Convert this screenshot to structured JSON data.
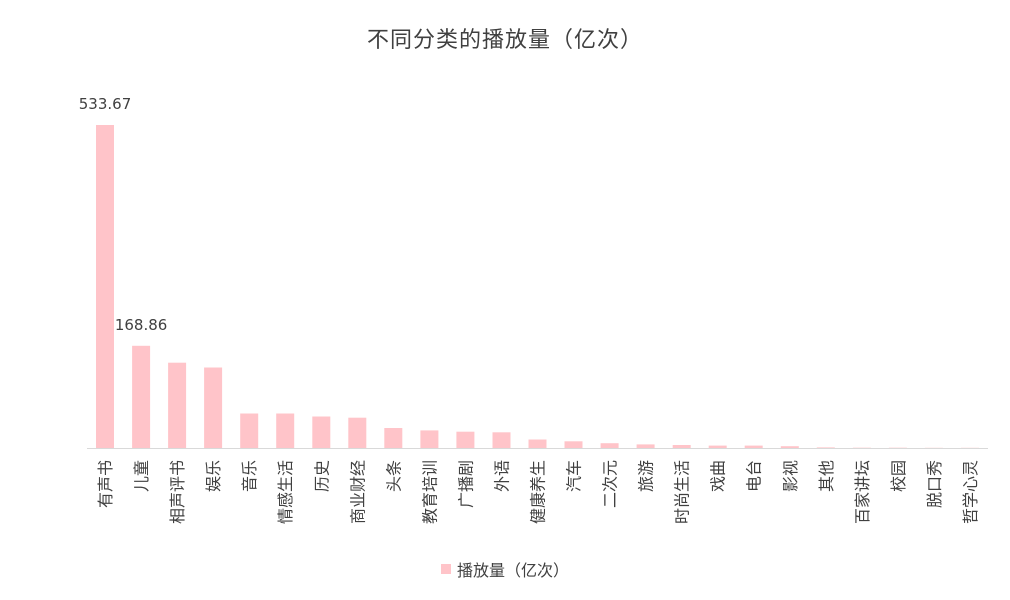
{
  "chart_data": {
    "type": "bar",
    "title": "不同分类的播放量（亿次）",
    "legend": "bottom",
    "legend_entries": [
      "播放量（亿次）"
    ],
    "grid": false,
    "ylim": [
      0,
      533.67
    ],
    "categories": [
      "有声书",
      "儿童",
      "相声评书",
      "娱乐",
      "音乐",
      "情感生活",
      "历史",
      "商业财经",
      "头条",
      "教育培训",
      "广播剧",
      "外语",
      "健康养生",
      "汽车",
      "二次元",
      "旅游",
      "时尚生活",
      "戏曲",
      "电台",
      "影视",
      "其他",
      "百家讲坛",
      "校园",
      "脱口秀",
      "哲学心灵"
    ],
    "series": [
      {
        "name": "播放量（亿次）",
        "color": "#FFC4C9",
        "values": [
          533.67,
          168.86,
          141,
          133,
          57,
          57,
          52,
          50,
          33,
          29,
          27,
          26,
          14,
          11,
          8,
          6,
          5,
          4,
          4,
          3,
          1,
          0.5,
          0.5,
          0.3,
          0.3
        ],
        "data_labels": [
          "533.67",
          "168.86",
          "",
          "",
          "",
          "",
          "",
          "",
          "",
          "",
          "",
          "",
          "",
          "",
          "",
          "",
          "",
          "",
          "",
          "",
          "",
          "",
          "",
          "",
          ""
        ]
      }
    ]
  }
}
